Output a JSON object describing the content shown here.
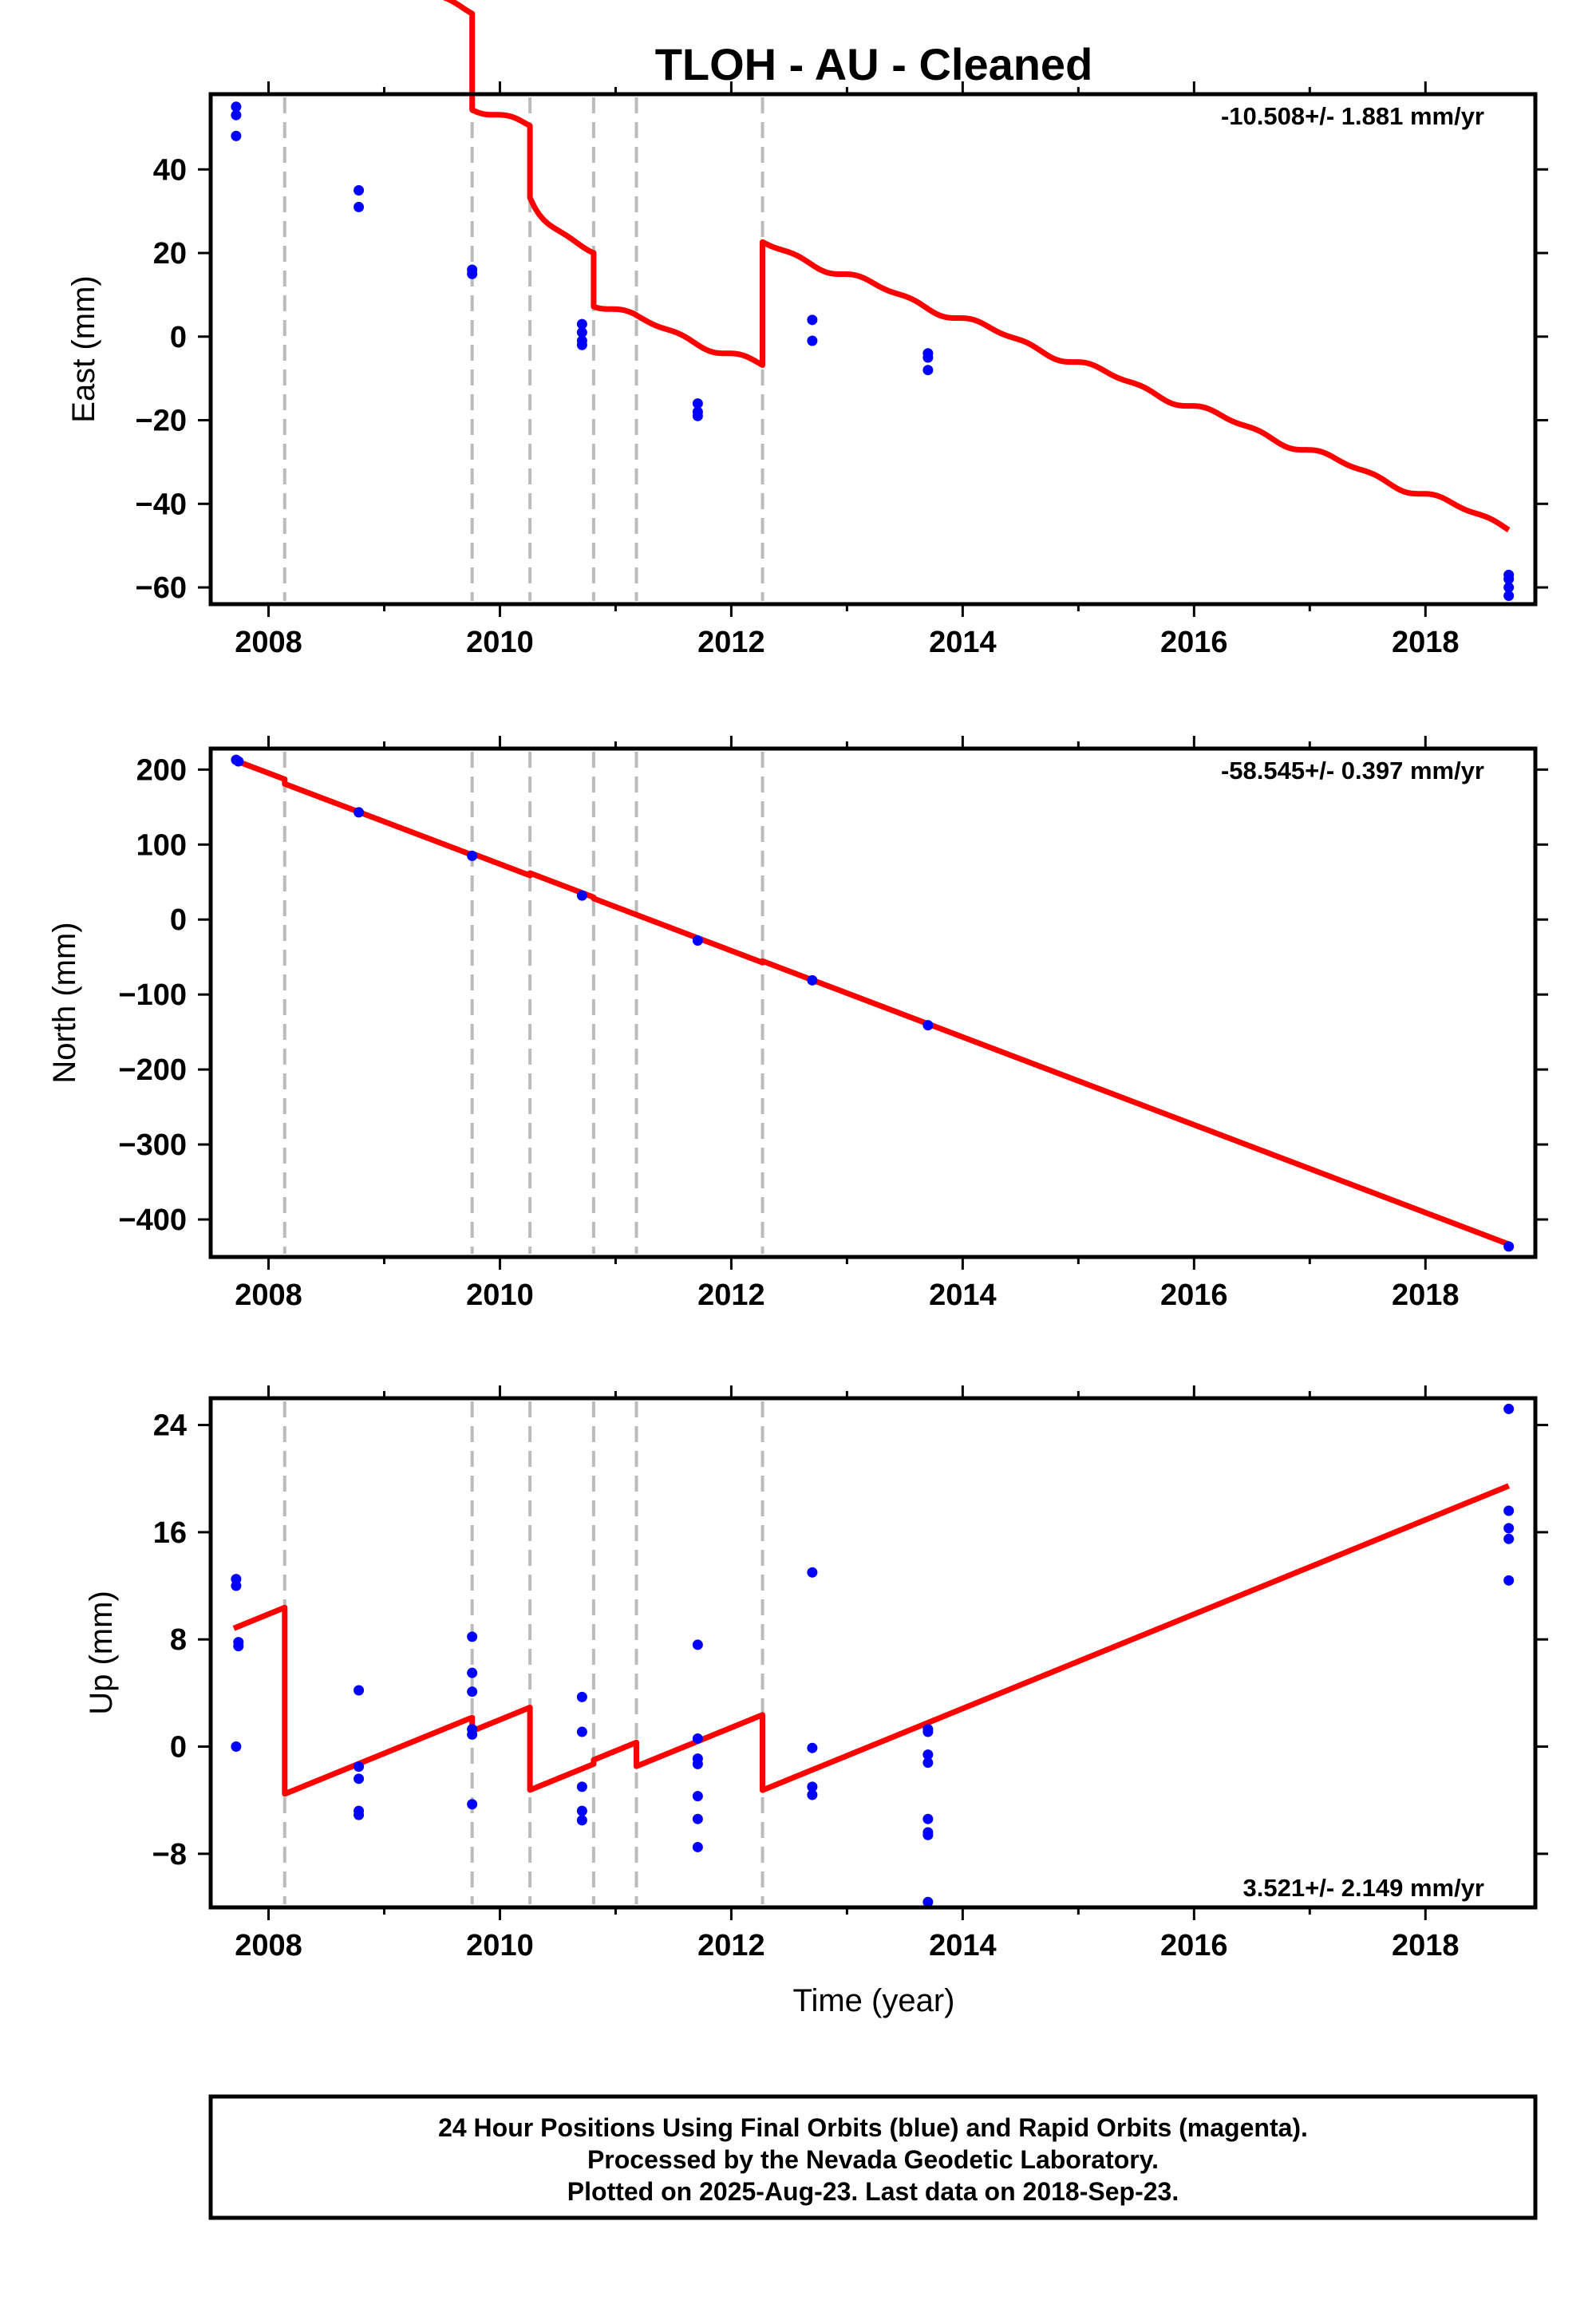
{
  "title": "TLOH  - AU - Cleaned",
  "footer": {
    "lines": [
      "24 Hour Positions Using Final Orbits (blue) and Rapid Orbits (magenta).",
      "Processed by the Nevada Geodetic Laboratory.",
      "Plotted on 2025-Aug-23. Last data on 2018-Sep-23."
    ]
  },
  "colors": {
    "data_points": "#0000ff",
    "model_line": "#ff0000",
    "offset_lines": "#bbbbbb",
    "frame": "#000000"
  },
  "chart_data": [
    {
      "type": "scatter",
      "name": "east",
      "ylabel": "East (mm)",
      "xlabel": "",
      "xlim": [
        2007.5,
        2018.95
      ],
      "ylim": [
        -64,
        58
      ],
      "xticks": [
        "2008",
        "2010",
        "2012",
        "2014",
        "2016",
        "2018"
      ],
      "yticks": [
        "40",
        "20",
        "0",
        "−20",
        "−40",
        "−60"
      ],
      "ytick_values": [
        40,
        20,
        0,
        -20,
        -40,
        -60
      ],
      "rate_text": "-10.508+/- 1.881 mm/yr",
      "rate_position": "top-right",
      "offset_epochs": [
        2008.14,
        2009.76,
        2010.26,
        2010.81,
        2011.18,
        2012.27
      ],
      "points": {
        "x": [
          2007.72,
          2007.72,
          2007.72,
          2008.78,
          2008.78,
          2009.76,
          2009.76,
          2010.71,
          2010.71,
          2010.71,
          2010.71,
          2011.71,
          2011.71,
          2011.71,
          2012.7,
          2012.7,
          2013.7,
          2013.7,
          2013.7,
          2018.72,
          2018.72,
          2018.72,
          2018.72
        ],
        "y": [
          55,
          53,
          48,
          35,
          31,
          16,
          15,
          3,
          1,
          -1,
          -2,
          -16,
          -18,
          -19,
          4,
          -1,
          -4,
          -5,
          -8,
          -57,
          -58,
          -60,
          -62
        ]
      },
      "model": {
        "type": "segmented-seasonal",
        "trend": -10.508,
        "annual_amplitude": 0.7,
        "semiannual_amplitude": 0.5,
        "reference_epoch": 2013.5,
        "intercepts": [
          51.35,
          39.0,
          16.0,
          -1.16,
          -14.0,
          -14.06,
          15.4
        ],
        "transients": [
          {
            "epoch": 2010.26,
            "amplitude": -6.0,
            "tau_years": 0.12
          }
        ]
      }
    },
    {
      "type": "scatter",
      "name": "north",
      "ylabel": "North (mm)",
      "xlabel": "",
      "xlim": [
        2007.5,
        2018.95
      ],
      "ylim": [
        -450,
        228
      ],
      "xticks": [
        "2008",
        "2010",
        "2012",
        "2014",
        "2016",
        "2018"
      ],
      "yticks": [
        "200",
        "100",
        "0",
        "−100",
        "−200",
        "−300",
        "−400"
      ],
      "ytick_values": [
        200,
        100,
        0,
        -100,
        -200,
        -300,
        -400
      ],
      "rate_text": "-58.545+/- 0.397 mm/yr",
      "rate_position": "top-right",
      "offset_epochs": [
        2008.14,
        2009.76,
        2010.26,
        2010.81,
        2011.18,
        2012.27
      ],
      "points": {
        "x": [
          2007.72,
          2007.74,
          2008.78,
          2009.76,
          2010.71,
          2011.71,
          2012.7,
          2013.7,
          2018.72
        ],
        "y": [
          213,
          211,
          143,
          85,
          32,
          -28,
          -81,
          -141,
          -436
        ]
      },
      "model": {
        "type": "segmented-seasonal",
        "trend": -58.545,
        "annual_amplitude": 0,
        "semiannual_amplitude": 0,
        "reference_epoch": 2013.5,
        "intercepts": [
          -126.7,
          -132.8,
          -130.9,
          -127.7,
          -129.4,
          -129.4,
          -127.4
        ],
        "transients": []
      }
    },
    {
      "type": "scatter",
      "name": "up",
      "ylabel": "Up (mm)",
      "xlabel": "Time (year)",
      "xlim": [
        2007.5,
        2018.95
      ],
      "ylim": [
        -12,
        26
      ],
      "xticks": [
        "2008",
        "2010",
        "2012",
        "2014",
        "2016",
        "2018"
      ],
      "yticks": [
        "24",
        "16",
        "8",
        "0",
        "−8"
      ],
      "ytick_values": [
        24,
        16,
        8,
        0,
        -8
      ],
      "rate_text": "3.521+/- 2.149 mm/yr",
      "rate_position": "bottom-right",
      "offset_epochs": [
        2008.14,
        2009.76,
        2010.26,
        2010.81,
        2011.18,
        2012.27
      ],
      "points": {
        "x": [
          2007.72,
          2007.72,
          2007.74,
          2007.74,
          2007.72,
          2008.78,
          2008.78,
          2008.78,
          2008.78,
          2008.78,
          2009.76,
          2009.76,
          2009.76,
          2009.76,
          2009.76,
          2009.76,
          2010.71,
          2010.71,
          2010.71,
          2010.71,
          2010.71,
          2011.71,
          2011.71,
          2011.71,
          2011.71,
          2011.71,
          2011.71,
          2011.71,
          2012.7,
          2012.7,
          2012.7,
          2012.7,
          2013.7,
          2013.7,
          2013.7,
          2013.7,
          2013.7,
          2013.7,
          2013.7,
          2013.7,
          2018.72,
          2018.72,
          2018.72,
          2018.72,
          2018.72
        ],
        "y": [
          12.5,
          12,
          7.8,
          7.5,
          0,
          4.2,
          -1.5,
          -2.4,
          -4.8,
          -5.1,
          8.2,
          5.5,
          4.1,
          1.3,
          0.9,
          -4.3,
          3.7,
          1.1,
          -3.0,
          -4.8,
          -5.5,
          7.6,
          0.6,
          -0.9,
          -1.3,
          -3.7,
          -5.4,
          -7.5,
          13.0,
          -0.1,
          -3.0,
          -3.6,
          1.3,
          1.1,
          -0.6,
          -1.2,
          -5.4,
          -6.4,
          -6.6,
          -11.6,
          25.2,
          17.6,
          16.3,
          15.5,
          12.4
        ]
      },
      "model": {
        "type": "segmented-seasonal",
        "trend": 3.521,
        "annual_amplitude": 0,
        "semiannual_amplitude": 0,
        "reference_epoch": 2013.5,
        "intercepts": [
          29.25,
          15.34,
          14.33,
          8.17,
          8.48,
          6.7,
          1.08
        ],
        "transients": []
      }
    }
  ]
}
